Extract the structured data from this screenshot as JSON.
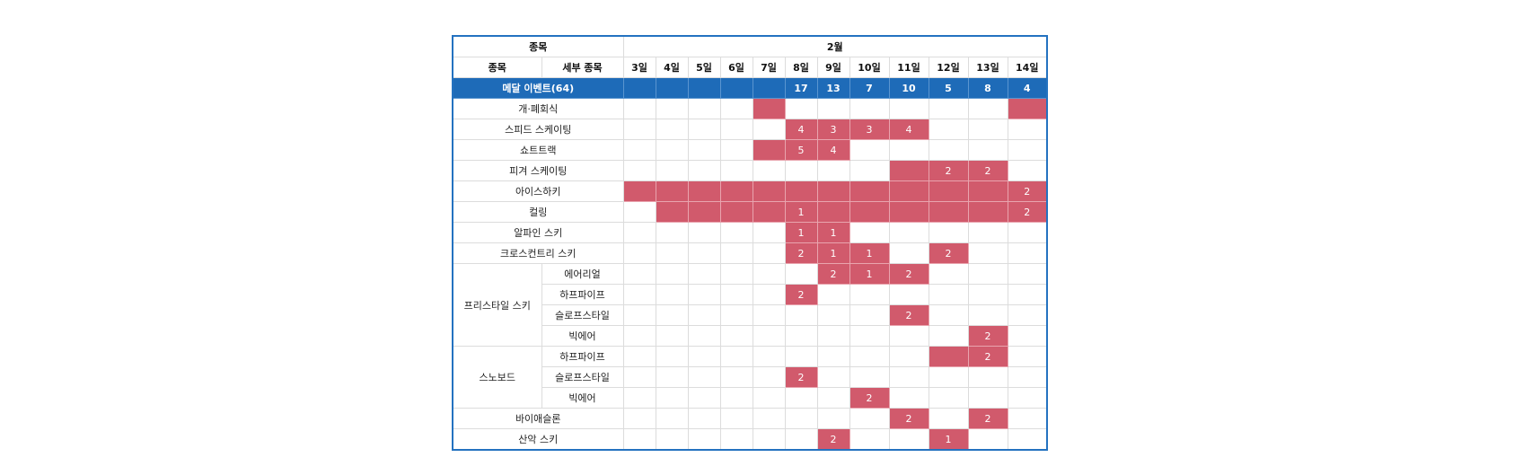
{
  "header": {
    "sport": "종목",
    "month": "2월",
    "sport_col": "종목",
    "sub_col": "세부 종목"
  },
  "days": [
    "3일",
    "4일",
    "5일",
    "6일",
    "7일",
    "8일",
    "9일",
    "10일",
    "11일",
    "12일",
    "13일",
    "14일"
  ],
  "medal_row": {
    "label": "메달 이벤트(64)",
    "counts": [
      "",
      "",
      "",
      "",
      "",
      "17",
      "13",
      "7",
      "10",
      "5",
      "8",
      "4"
    ]
  },
  "rows": [
    {
      "sport": "개·폐회식",
      "cells": [
        null,
        null,
        null,
        null,
        "",
        null,
        null,
        null,
        null,
        null,
        null,
        ""
      ]
    },
    {
      "sport": "스피드 스케이팅",
      "cells": [
        null,
        null,
        null,
        null,
        null,
        "4",
        "3",
        "3",
        "4",
        null,
        null,
        null
      ]
    },
    {
      "sport": "쇼트트랙",
      "cells": [
        null,
        null,
        null,
        null,
        "",
        "5",
        "4",
        null,
        null,
        null,
        null,
        null
      ]
    },
    {
      "sport": "피겨 스케이팅",
      "cells": [
        null,
        null,
        null,
        null,
        null,
        null,
        null,
        null,
        "",
        "2",
        "2",
        null
      ]
    },
    {
      "sport": "아이스하키",
      "cells": [
        "",
        "",
        "",
        "",
        "",
        "",
        "",
        "",
        "",
        "",
        "",
        "2"
      ]
    },
    {
      "sport": "컬링",
      "cells": [
        null,
        "",
        "",
        "",
        "",
        "1",
        "",
        "",
        "",
        "",
        "",
        "2"
      ]
    },
    {
      "sport": "알파인 스키",
      "cells": [
        null,
        null,
        null,
        null,
        null,
        "1",
        "1",
        null,
        null,
        null,
        null,
        null
      ]
    },
    {
      "sport": "크로스컨트리 스키",
      "cells": [
        null,
        null,
        null,
        null,
        null,
        "2",
        "1",
        "1",
        null,
        "2",
        null,
        null
      ]
    },
    {
      "sport": "프리스타일 스키",
      "sub": "에어리얼",
      "cells": [
        null,
        null,
        null,
        null,
        null,
        null,
        "2",
        "1",
        "2",
        null,
        null,
        null
      ]
    },
    {
      "sport": "프리스타일 스키",
      "sub": "하프파이프",
      "cells": [
        null,
        null,
        null,
        null,
        null,
        "2",
        null,
        null,
        null,
        null,
        null,
        null
      ]
    },
    {
      "sport": "프리스타일 스키",
      "sub": "슬로프스타일",
      "cells": [
        null,
        null,
        null,
        null,
        null,
        null,
        null,
        null,
        "2",
        null,
        null,
        null
      ]
    },
    {
      "sport": "프리스타일 스키",
      "sub": "빅에어",
      "cells": [
        null,
        null,
        null,
        null,
        null,
        null,
        null,
        null,
        null,
        null,
        "2",
        null
      ]
    },
    {
      "sport": "스노보드",
      "sub": "하프파이프",
      "cells": [
        null,
        null,
        null,
        null,
        null,
        null,
        null,
        null,
        null,
        "",
        "2",
        null
      ]
    },
    {
      "sport": "스노보드",
      "sub": "슬로프스타일",
      "cells": [
        null,
        null,
        null,
        null,
        null,
        "2",
        null,
        null,
        null,
        null,
        null,
        null
      ]
    },
    {
      "sport": "스노보드",
      "sub": "빅에어",
      "cells": [
        null,
        null,
        null,
        null,
        null,
        null,
        null,
        "2",
        null,
        null,
        null,
        null
      ]
    },
    {
      "sport": "바이애슬론",
      "cells": [
        null,
        null,
        null,
        null,
        null,
        null,
        null,
        null,
        "2",
        null,
        "2",
        null
      ]
    },
    {
      "sport": "산악 스키",
      "cells": [
        null,
        null,
        null,
        null,
        null,
        null,
        "2",
        null,
        null,
        "1",
        null,
        null
      ]
    }
  ],
  "colors": {
    "border": "#2472c0",
    "medal_row": "#1e6bb8",
    "event_cell": "#d15a6c"
  }
}
